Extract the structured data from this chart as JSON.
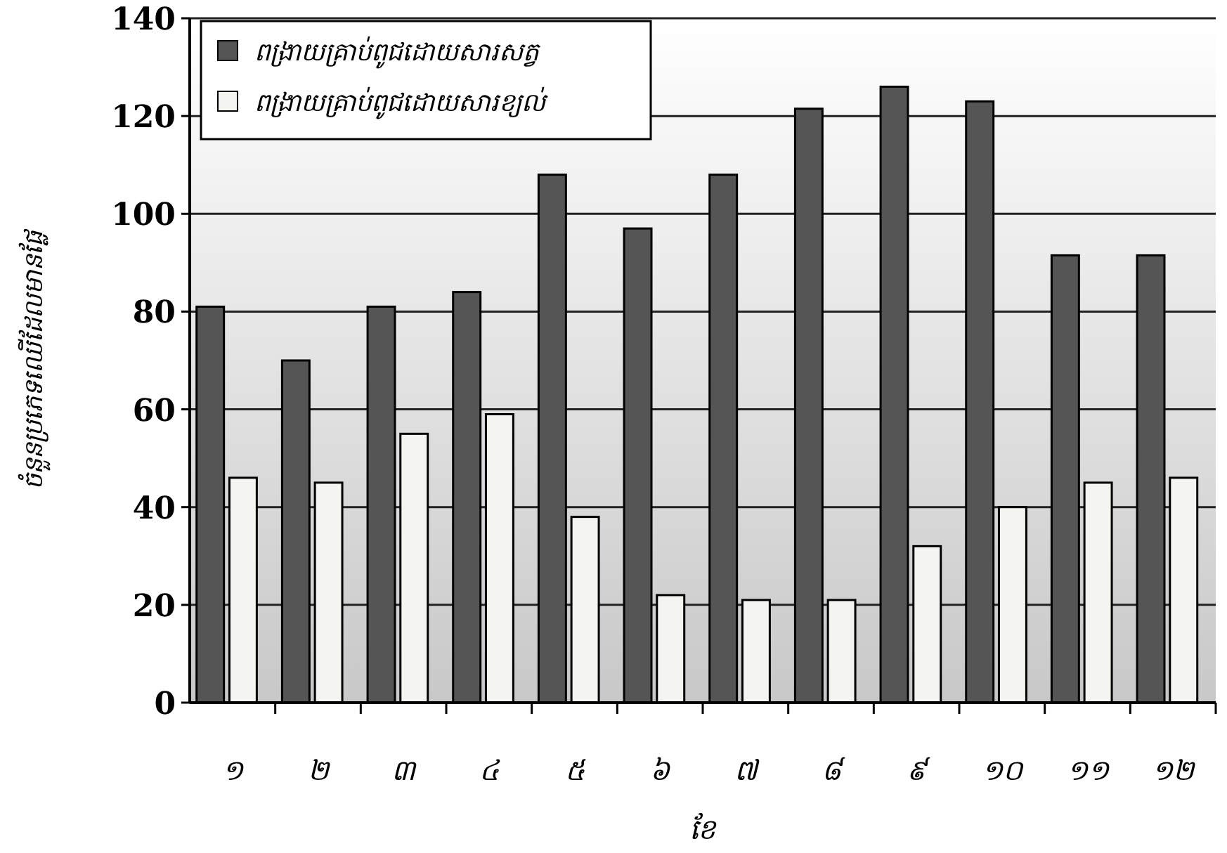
{
  "chart_data": {
    "type": "bar",
    "xlabel": "ខែ",
    "ylabel": "ចំនួនប្រភេទឈើដែលមានផ្លែ",
    "categories": [
      "១",
      "២",
      "៣",
      "៤",
      "៥",
      "៦",
      "៧",
      "៨",
      "៩",
      "១០",
      "១១",
      "១២"
    ],
    "series": [
      {
        "name": "ពង្រាយគ្រាប់ពូជដោយសារសត្វ",
        "color": "#555555",
        "values": [
          81,
          70,
          81,
          84,
          108,
          97,
          108,
          121.5,
          126,
          123,
          91.5,
          91.5
        ]
      },
      {
        "name": "ពង្រាយគ្រាប់ពូជដោយសារខ្យល់",
        "color": "#f4f4f0",
        "values": [
          46,
          45,
          55,
          59,
          38,
          22,
          21,
          21,
          32,
          40,
          45,
          46
        ]
      }
    ],
    "ylim": [
      0,
      140
    ],
    "yticks": [
      0,
      20,
      40,
      60,
      80,
      100,
      120,
      140
    ],
    "grid": "y",
    "legend": "top left"
  }
}
